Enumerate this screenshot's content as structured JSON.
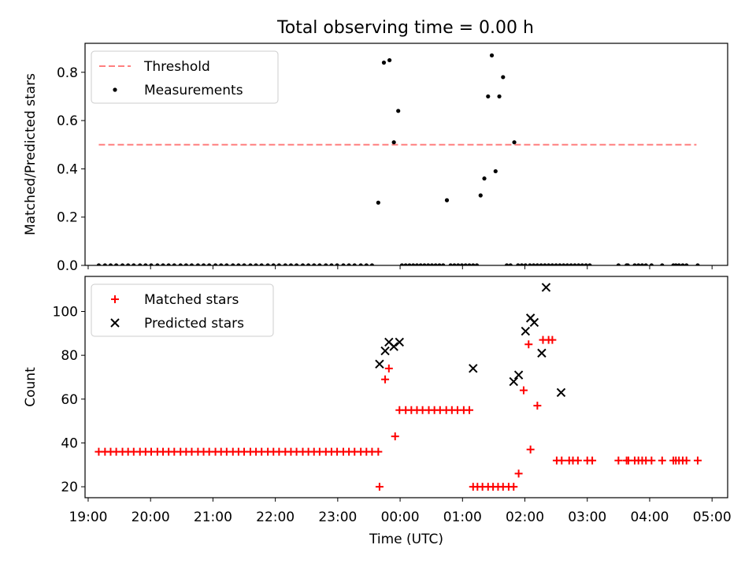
{
  "title": "Total observing time = 0.00 h",
  "chart_data": [
    {
      "type": "scatter",
      "xlabel": "",
      "ylabel": "Matched/Predicted stars",
      "xlim_hours": [
        18.95,
        29.25
      ],
      "ylim": [
        0,
        0.92
      ],
      "yticks": [
        0.0,
        0.2,
        0.4,
        0.6,
        0.8
      ],
      "xtick_hours": [
        19,
        20,
        21,
        22,
        23,
        24,
        25,
        26,
        27,
        28,
        29
      ],
      "xtick_labels": [
        "",
        "",
        "",
        "",
        "",
        "",
        "",
        "",
        "",
        "",
        ""
      ],
      "legend": {
        "position": "upper-left",
        "entries": [
          "Threshold",
          "Measurements"
        ]
      },
      "series": [
        {
          "name": "Threshold",
          "kind": "line",
          "style": "dashed",
          "color": "#ff7f7f",
          "x_hours": [
            19.17,
            28.75
          ],
          "y": [
            0.5,
            0.5
          ]
        },
        {
          "name": "Measurements",
          "kind": "scatter",
          "color": "#000000",
          "x_hours": [
            19.17,
            19.27,
            19.36,
            19.45,
            19.55,
            19.64,
            19.73,
            19.83,
            19.92,
            20.01,
            20.11,
            20.2,
            20.29,
            20.38,
            20.48,
            20.57,
            20.66,
            20.76,
            20.85,
            20.94,
            21.04,
            21.13,
            21.22,
            21.32,
            21.41,
            21.5,
            21.6,
            21.69,
            21.78,
            21.88,
            21.97,
            22.06,
            22.16,
            22.25,
            22.34,
            22.44,
            22.53,
            22.62,
            22.71,
            22.81,
            22.9,
            22.99,
            23.09,
            23.18,
            23.27,
            23.37,
            23.46,
            23.55,
            23.65,
            23.74,
            23.83,
            23.9,
            23.97,
            24.03,
            24.09,
            24.15,
            24.21,
            24.27,
            24.33,
            24.39,
            24.45,
            24.51,
            24.57,
            24.63,
            24.69,
            24.75,
            24.81,
            24.87,
            24.93,
            24.99,
            25.05,
            25.11,
            25.17,
            25.23,
            25.29,
            25.35,
            25.41,
            25.47,
            25.53,
            25.59,
            25.65,
            25.71,
            25.77,
            25.83,
            25.89,
            25.95,
            26.01,
            26.08,
            26.14,
            26.2,
            26.26,
            26.32,
            26.38,
            26.44,
            26.5,
            26.56,
            26.62,
            26.68,
            26.74,
            26.8,
            26.86,
            26.92,
            26.98,
            27.04,
            27.5,
            27.63,
            27.65,
            27.76,
            27.82,
            27.88,
            27.94,
            28.03,
            28.2,
            28.38,
            28.42,
            28.47,
            28.53,
            28.59,
            28.77
          ],
          "y": [
            0,
            0,
            0,
            0,
            0,
            0,
            0,
            0,
            0,
            0,
            0,
            0,
            0,
            0,
            0,
            0,
            0,
            0,
            0,
            0,
            0,
            0,
            0,
            0,
            0,
            0,
            0,
            0,
            0,
            0,
            0,
            0,
            0,
            0,
            0,
            0,
            0,
            0,
            0,
            0,
            0,
            0,
            0,
            0,
            0,
            0,
            0,
            0,
            0.26,
            0.84,
            0.85,
            0.51,
            0.64,
            0,
            0,
            0,
            0,
            0,
            0,
            0,
            0,
            0,
            0,
            0,
            0,
            0.27,
            0,
            0,
            0,
            0,
            0,
            0,
            0,
            0,
            0.29,
            0.36,
            0.7,
            0.87,
            0.39,
            0.7,
            0.78,
            0,
            0,
            0.51,
            0,
            0,
            0,
            0,
            0,
            0,
            0,
            0,
            0,
            0,
            0,
            0,
            0,
            0,
            0,
            0,
            0,
            0,
            0,
            0,
            0,
            0,
            0,
            0,
            0,
            0,
            0,
            0,
            0,
            0,
            0,
            0,
            0,
            0,
            0
          ]
        }
      ]
    },
    {
      "type": "scatter",
      "xlabel": "Time (UTC)",
      "ylabel": "Count",
      "xlim_hours": [
        18.95,
        29.25
      ],
      "ylim": [
        15,
        116
      ],
      "yticks": [
        20,
        40,
        60,
        80,
        100
      ],
      "xtick_hours": [
        19,
        20,
        21,
        22,
        23,
        24,
        25,
        26,
        27,
        28,
        29
      ],
      "xtick_labels": [
        "19:00",
        "20:00",
        "21:00",
        "22:00",
        "23:00",
        "00:00",
        "01:00",
        "02:00",
        "03:00",
        "04:00",
        "05:00"
      ],
      "legend": {
        "position": "upper-left",
        "entries": [
          "Matched stars",
          "Predicted stars"
        ]
      },
      "series": [
        {
          "name": "Matched stars",
          "kind": "scatter",
          "marker": "plus",
          "color": "#ff0000",
          "x_hours": [
            19.17,
            19.27,
            19.36,
            19.45,
            19.55,
            19.64,
            19.73,
            19.83,
            19.92,
            20.01,
            20.11,
            20.2,
            20.29,
            20.38,
            20.48,
            20.57,
            20.66,
            20.76,
            20.85,
            20.94,
            21.04,
            21.13,
            21.22,
            21.32,
            21.41,
            21.5,
            21.6,
            21.69,
            21.78,
            21.88,
            21.97,
            22.06,
            22.16,
            22.25,
            22.34,
            22.44,
            22.53,
            22.62,
            22.71,
            22.81,
            22.9,
            22.99,
            23.09,
            23.18,
            23.27,
            23.37,
            23.46,
            23.55,
            23.65,
            23.67,
            23.76,
            23.82,
            23.92,
            23.99,
            24.09,
            24.18,
            24.27,
            24.36,
            24.46,
            24.55,
            24.64,
            24.74,
            24.83,
            24.92,
            25.02,
            25.11,
            25.17,
            25.24,
            25.32,
            25.41,
            25.49,
            25.57,
            25.65,
            25.74,
            25.82,
            25.9,
            25.98,
            26.06,
            26.09,
            26.2,
            26.29,
            26.38,
            26.44,
            26.51,
            26.59,
            26.71,
            26.77,
            26.85,
            27.0,
            27.08,
            27.5,
            27.63,
            27.66,
            27.76,
            27.82,
            27.88,
            27.94,
            28.03,
            28.2,
            28.38,
            28.42,
            28.47,
            28.53,
            28.59,
            28.77
          ],
          "y": [
            36,
            36,
            36,
            36,
            36,
            36,
            36,
            36,
            36,
            36,
            36,
            36,
            36,
            36,
            36,
            36,
            36,
            36,
            36,
            36,
            36,
            36,
            36,
            36,
            36,
            36,
            36,
            36,
            36,
            36,
            36,
            36,
            36,
            36,
            36,
            36,
            36,
            36,
            36,
            36,
            36,
            36,
            36,
            36,
            36,
            36,
            36,
            36,
            36,
            20,
            69,
            74,
            43,
            55,
            55,
            55,
            55,
            55,
            55,
            55,
            55,
            55,
            55,
            55,
            55,
            55,
            20,
            20,
            20,
            20,
            20,
            20,
            20,
            20,
            20,
            26,
            64,
            85,
            37,
            57,
            87,
            87,
            87,
            32,
            32,
            32,
            32,
            32,
            32,
            32,
            32,
            32,
            32,
            32,
            32,
            32,
            32,
            32,
            32,
            32,
            32,
            32,
            32,
            32,
            32
          ]
        },
        {
          "name": "Predicted stars",
          "kind": "scatter",
          "marker": "x",
          "color": "#000000",
          "x_hours": [
            23.67,
            23.76,
            23.82,
            23.9,
            23.99,
            25.17,
            25.82,
            25.9,
            26.01,
            26.09,
            26.15,
            26.27,
            26.34,
            26.58
          ],
          "y": [
            76,
            82,
            86,
            84,
            86,
            74,
            68,
            71,
            91,
            97,
            95,
            81,
            111,
            63
          ]
        }
      ]
    }
  ]
}
